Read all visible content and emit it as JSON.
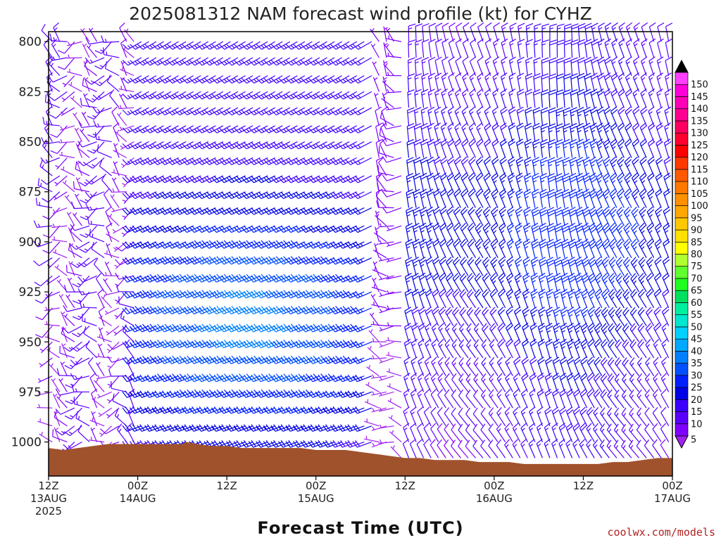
{
  "chart_data": {
    "type": "wind_barb_time_height",
    "title": "2025081312 NAM forecast wind profile (kt) for CYHZ",
    "xlabel": "Forecast Time (UTC)",
    "ylabel": "",
    "units": "kt",
    "y_scale": "pressure_hPa_inverted",
    "ylim": [
      1017,
      795
    ],
    "y_ticks": [
      800,
      825,
      850,
      875,
      900,
      925,
      950,
      975,
      1000
    ],
    "xlim_hours": [
      0,
      84
    ],
    "x_ticks": [
      {
        "h": 0,
        "line1": "12Z",
        "line2": "13AUG",
        "line3": "2025"
      },
      {
        "h": 12,
        "line1": "00Z",
        "line2": "14AUG",
        "line3": ""
      },
      {
        "h": 24,
        "line1": "12Z",
        "line2": "",
        "line3": ""
      },
      {
        "h": 36,
        "line1": "00Z",
        "line2": "15AUG",
        "line3": ""
      },
      {
        "h": 48,
        "line1": "12Z",
        "line2": "",
        "line3": ""
      },
      {
        "h": 60,
        "line1": "00Z",
        "line2": "16AUG",
        "line3": ""
      },
      {
        "h": 72,
        "line1": "12Z",
        "line2": "",
        "line3": ""
      },
      {
        "h": 84,
        "line1": "00Z",
        "line2": "17AUG",
        "line3": ""
      }
    ],
    "time_step_hours": 1,
    "barb_levels_hPa": [
      800,
      808,
      817,
      825,
      833,
      842,
      850,
      858,
      867,
      875,
      883,
      892,
      900,
      908,
      917,
      925,
      933,
      942,
      950,
      958,
      967,
      975,
      983,
      992,
      1000,
      1008
    ],
    "surface_pressure_hPa": {
      "hours": [
        0,
        2,
        4,
        6,
        8,
        10,
        12,
        14,
        16,
        18,
        18.5,
        20,
        22,
        24,
        26,
        28,
        30,
        32,
        34,
        36,
        38,
        40,
        42,
        44,
        46,
        48,
        50,
        52,
        54,
        56,
        58,
        60,
        62,
        64,
        66,
        68,
        70,
        72,
        74,
        76,
        78,
        80,
        82,
        84
      ],
      "values": [
        1003,
        1004,
        1003,
        1002,
        1001,
        1001,
        1001,
        1001,
        1001,
        1001,
        1000,
        1001,
        1002,
        1002,
        1003,
        1003,
        1003,
        1003,
        1003,
        1004,
        1004,
        1004,
        1005,
        1006,
        1007,
        1008,
        1008,
        1009,
        1009,
        1009,
        1010,
        1010,
        1010,
        1011,
        1011,
        1011,
        1011,
        1011,
        1011,
        1010,
        1010,
        1009,
        1008,
        1008
      ]
    },
    "wind_regimes": [
      {
        "from_h": 0,
        "to_h": 11,
        "speed_kt": [
          5,
          15
        ],
        "direction": "variable westerly/northwesterly"
      },
      {
        "from_h": 12,
        "to_h": 44,
        "speed_kt": [
          15,
          40
        ],
        "direction": "southwesterly",
        "max_near_hPa": 940
      },
      {
        "from_h": 44,
        "to_h": 48,
        "speed_kt": [
          5,
          10
        ],
        "direction": "light and variable"
      },
      {
        "from_h": 48,
        "to_h": 84,
        "speed_kt": [
          10,
          30
        ],
        "direction": "northerly to northwesterly"
      }
    ],
    "colorbar": {
      "levels": [
        5,
        10,
        15,
        20,
        25,
        30,
        35,
        40,
        45,
        50,
        55,
        60,
        65,
        70,
        75,
        80,
        85,
        90,
        95,
        100,
        105,
        110,
        115,
        120,
        125,
        130,
        135,
        140,
        145,
        150
      ],
      "colors": [
        "#7f00ff",
        "#5a00ff",
        "#3c00ff",
        "#0000e6",
        "#0020ff",
        "#0050ff",
        "#0080ff",
        "#00a8ff",
        "#00d0ff",
        "#00e8d0",
        "#00f0a0",
        "#00e060",
        "#20ff20",
        "#60ff30",
        "#b0ff30",
        "#ffff00",
        "#ffe000",
        "#ffc800",
        "#ffa800",
        "#ff9000",
        "#ff7800",
        "#ff5a00",
        "#ff3800",
        "#ff0000",
        "#ff0030",
        "#ff0060",
        "#ff0090",
        "#ff00b8",
        "#ff00d8",
        "#ff40ff"
      ],
      "under_color": "#a020f0",
      "over_color": "#000000"
    },
    "terrain_color": "#a0522d"
  },
  "credit": "coolwx.com/models"
}
